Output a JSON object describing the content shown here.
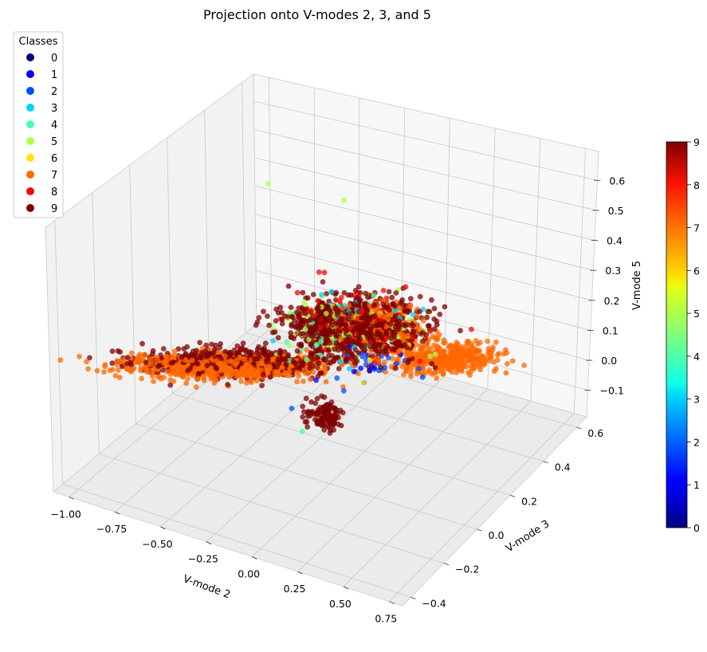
{
  "chart_data": {
    "type": "scatter",
    "title": "Projection onto V-modes 2, 3, and 5",
    "xlabel": "V-mode 2",
    "ylabel": "V-mode 3",
    "zlabel": "V-mode 5",
    "x_ticks": [
      "−1.00",
      "−0.75",
      "−0.50",
      "−0.25",
      "0.00",
      "0.25",
      "0.50",
      "0.75"
    ],
    "y_ticks": [
      "−0.4",
      "−0.2",
      "0.0",
      "0.2",
      "0.4",
      "0.6"
    ],
    "z_ticks": [
      "−0.1",
      "0.0",
      "0.1",
      "0.2",
      "0.3",
      "0.4",
      "0.5",
      "0.6"
    ],
    "xlim": [
      -1.05,
      0.8
    ],
    "ylim": [
      -0.45,
      0.65
    ],
    "zlim": [
      -0.18,
      0.65
    ],
    "legend": {
      "title": "Classes",
      "placement": "upper-left",
      "entries": [
        {
          "label": "0",
          "color": "#00007f"
        },
        {
          "label": "1",
          "color": "#0000f1"
        },
        {
          "label": "2",
          "color": "#004cff"
        },
        {
          "label": "3",
          "color": "#00d4f9"
        },
        {
          "label": "4",
          "color": "#49ffad"
        },
        {
          "label": "5",
          "color": "#adff49"
        },
        {
          "label": "6",
          "color": "#ffe500"
        },
        {
          "label": "7",
          "color": "#ff6800"
        },
        {
          "label": "8",
          "color": "#f10800"
        },
        {
          "label": "9",
          "color": "#7f0000"
        }
      ]
    },
    "colorbar": {
      "colormap": "jet",
      "range": [
        0,
        9
      ],
      "ticks": [
        "0",
        "1",
        "2",
        "3",
        "4",
        "5",
        "6",
        "7",
        "8",
        "9"
      ]
    },
    "clusters": [
      {
        "class": 7,
        "x_center": -0.55,
        "y_center": 0.05,
        "z_center": 0.0,
        "x_spread": 0.45,
        "y_spread": 0.1,
        "z_spread": 0.04,
        "approx_count": 900
      },
      {
        "class": 9,
        "x_center": -0.5,
        "y_center": 0.05,
        "z_center": 0.02,
        "x_spread": 0.45,
        "y_spread": 0.1,
        "z_spread": 0.05,
        "approx_count": 450
      },
      {
        "class": 9,
        "x_center": 0.05,
        "y_center": 0.0,
        "z_center": 0.15,
        "x_spread": 0.3,
        "y_spread": 0.3,
        "z_spread": 0.1,
        "approx_count": 900
      },
      {
        "class": 9,
        "x_center": -0.1,
        "y_center": -0.1,
        "z_center": -0.15,
        "x_spread": 0.08,
        "y_spread": 0.05,
        "z_spread": 0.05,
        "approx_count": 120
      },
      {
        "class": 7,
        "x_center": 0.45,
        "y_center": 0.35,
        "z_center": 0.0,
        "x_spread": 0.25,
        "y_spread": 0.2,
        "z_spread": 0.05,
        "approx_count": 450
      },
      {
        "class": 7,
        "x_center": 0.15,
        "y_center": 0.0,
        "z_center": 0.15,
        "x_spread": 0.2,
        "y_spread": 0.15,
        "z_spread": 0.08,
        "approx_count": 300
      },
      {
        "class": 8,
        "x_center": 0.05,
        "y_center": 0.05,
        "z_center": 0.15,
        "x_spread": 0.3,
        "y_spread": 0.25,
        "z_spread": 0.1,
        "approx_count": 150
      },
      {
        "class": 5,
        "x_center": 0.0,
        "y_center": 0.05,
        "z_center": 0.15,
        "x_spread": 0.35,
        "y_spread": 0.25,
        "z_spread": 0.1,
        "approx_count": 110
      },
      {
        "class": 4,
        "x_center": 0.0,
        "y_center": 0.05,
        "z_center": 0.12,
        "x_spread": 0.3,
        "y_spread": 0.25,
        "z_spread": 0.1,
        "approx_count": 60
      },
      {
        "class": 3,
        "x_center": 0.05,
        "y_center": 0.05,
        "z_center": 0.15,
        "x_spread": 0.25,
        "y_spread": 0.25,
        "z_spread": 0.1,
        "approx_count": 50
      },
      {
        "class": 2,
        "x_center": 0.1,
        "y_center": 0.05,
        "z_center": 0.05,
        "x_spread": 0.2,
        "y_spread": 0.2,
        "z_spread": 0.1,
        "approx_count": 35
      },
      {
        "class": 1,
        "x_center": 0.1,
        "y_center": 0.0,
        "z_center": 0.05,
        "x_spread": 0.15,
        "y_spread": 0.15,
        "z_spread": 0.08,
        "approx_count": 12
      },
      {
        "class": 6,
        "x_center": 0.1,
        "y_center": 0.0,
        "z_center": 0.05,
        "x_spread": 0.2,
        "y_spread": 0.2,
        "z_spread": 0.08,
        "approx_count": 12
      }
    ],
    "outliers": [
      {
        "class": 5,
        "x": -0.35,
        "y": 0.4,
        "z": 0.6
      },
      {
        "class": 5,
        "x": 0.0,
        "y": 0.35,
        "z": 0.55
      },
      {
        "class": 4,
        "x": -0.2,
        "y": -0.3,
        "z": -0.18
      },
      {
        "class": 2,
        "x": -0.25,
        "y": -0.3,
        "z": -0.1
      }
    ]
  }
}
